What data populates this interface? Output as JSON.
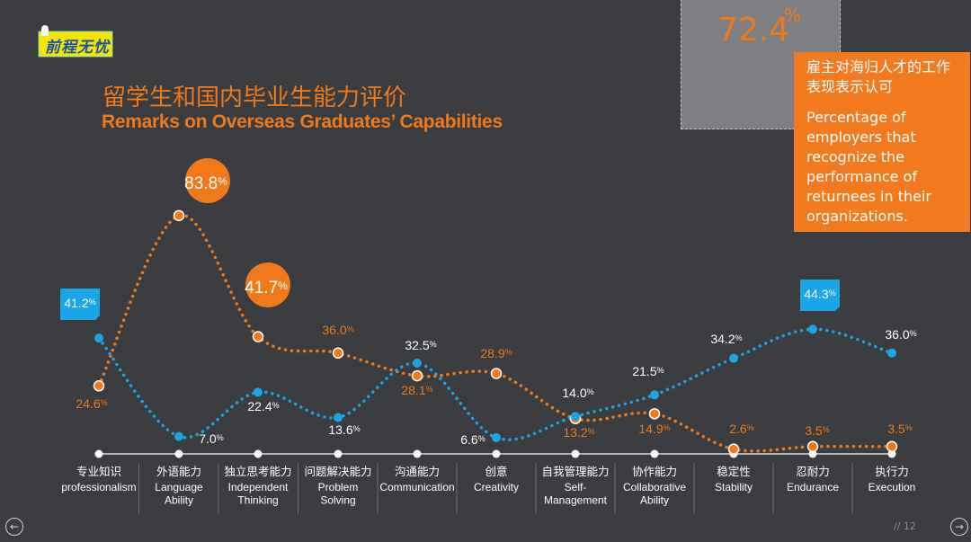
{
  "logo": {
    "text": "前程无忧"
  },
  "title": {
    "cn": "留学生和国内毕业生能力评价",
    "en": "Remarks on Overseas Graduates’ Capabilities"
  },
  "stat": {
    "value": "72.4",
    "unit": "%",
    "cn": "雇主对海归人才的工作表现表示认可",
    "en": "Percentage of employers that recognize the performance of returnees in their organizations."
  },
  "page": {
    "number": "// 12"
  },
  "colors": {
    "overseas": "#f07a1a",
    "domestic": "#19a5e6",
    "background": "#3a3c40"
  },
  "icons": {
    "prev": "arrow-left-circle-icon",
    "next": "arrow-right-circle-icon"
  },
  "chart_data": {
    "type": "line",
    "categories": [
      {
        "cn": "专业知识",
        "en": "professionalism"
      },
      {
        "cn": "外语能力",
        "en": "Language Ability"
      },
      {
        "cn": "独立思考能力",
        "en": "Independent Thinking"
      },
      {
        "cn": "问题解决能力",
        "en": "Problem Solving"
      },
      {
        "cn": "沟通能力",
        "en": "Communication"
      },
      {
        "cn": "创意",
        "en": "Creativity"
      },
      {
        "cn": "自我管理能力",
        "en": "Self-Management"
      },
      {
        "cn": "协作能力",
        "en": "Collaborative Ability"
      },
      {
        "cn": "稳定性",
        "en": "Stability"
      },
      {
        "cn": "忍耐力",
        "en": "Endurance"
      },
      {
        "cn": "执行力",
        "en": "Execution"
      }
    ],
    "series": [
      {
        "values": [
          24.6,
          83.8,
          41.7,
          36.0,
          28.1,
          28.9,
          13.2,
          14.9,
          2.6,
          3.5,
          3.5
        ]
      },
      {
        "values": [
          41.2,
          7.0,
          22.4,
          13.6,
          32.5,
          6.6,
          14.0,
          21.5,
          34.2,
          44.3,
          36.0
        ]
      }
    ],
    "ylim": [
      0,
      90
    ],
    "unit": "%",
    "grid": false,
    "legend": "none"
  }
}
